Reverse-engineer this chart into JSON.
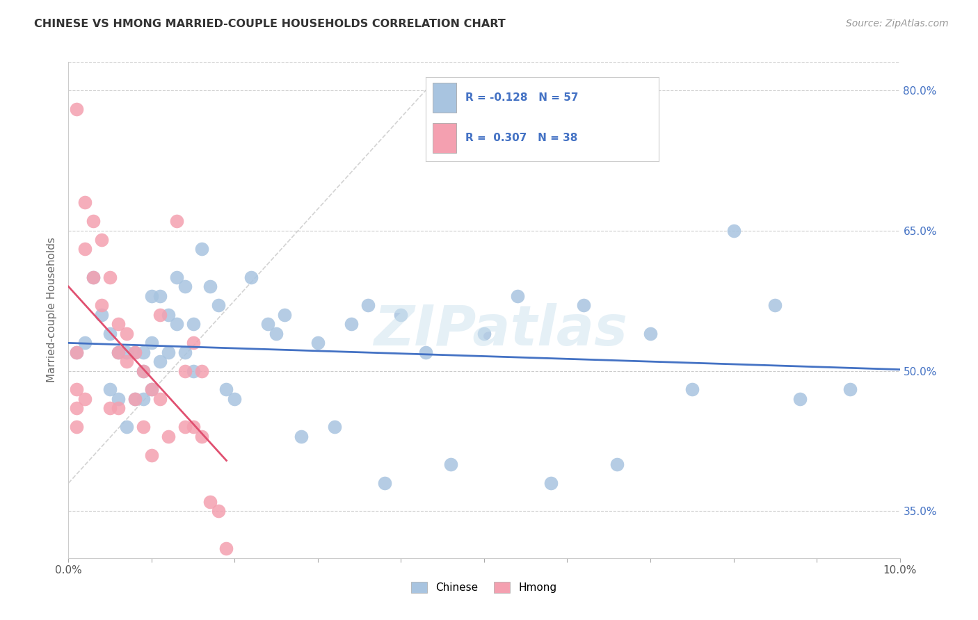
{
  "title": "CHINESE VS HMONG MARRIED-COUPLE HOUSEHOLDS CORRELATION CHART",
  "source": "Source: ZipAtlas.com",
  "ylabel": "Married-couple Households",
  "watermark": "ZIPatlas",
  "xlim": [
    0.0,
    0.1
  ],
  "ylim": [
    0.3,
    0.83
  ],
  "xticks": [
    0.0,
    0.01,
    0.02,
    0.03,
    0.04,
    0.05,
    0.06,
    0.07,
    0.08,
    0.09,
    0.1
  ],
  "yticks": [
    0.35,
    0.5,
    0.65,
    0.8
  ],
  "ytick_labels": [
    "35.0%",
    "50.0%",
    "65.0%",
    "80.0%"
  ],
  "chinese_color": "#a8c4e0",
  "hmong_color": "#f4a0b0",
  "chinese_line_color": "#4472c4",
  "hmong_line_color": "#e05070",
  "diagonal_color": "#c8c8c8",
  "R_chinese": -0.128,
  "N_chinese": 57,
  "R_hmong": 0.307,
  "N_hmong": 38,
  "legend_text_color": "#4472c4",
  "chinese_x": [
    0.001,
    0.002,
    0.003,
    0.004,
    0.005,
    0.005,
    0.006,
    0.006,
    0.007,
    0.007,
    0.008,
    0.008,
    0.009,
    0.009,
    0.009,
    0.01,
    0.01,
    0.01,
    0.011,
    0.011,
    0.012,
    0.012,
    0.013,
    0.013,
    0.014,
    0.014,
    0.015,
    0.015,
    0.016,
    0.017,
    0.018,
    0.019,
    0.02,
    0.022,
    0.024,
    0.025,
    0.026,
    0.028,
    0.03,
    0.032,
    0.034,
    0.036,
    0.038,
    0.04,
    0.043,
    0.046,
    0.05,
    0.054,
    0.058,
    0.062,
    0.066,
    0.07,
    0.075,
    0.08,
    0.085,
    0.088,
    0.094
  ],
  "chinese_y": [
    0.52,
    0.53,
    0.6,
    0.56,
    0.54,
    0.48,
    0.52,
    0.47,
    0.52,
    0.44,
    0.47,
    0.52,
    0.52,
    0.5,
    0.47,
    0.58,
    0.53,
    0.48,
    0.58,
    0.51,
    0.56,
    0.52,
    0.6,
    0.55,
    0.59,
    0.52,
    0.55,
    0.5,
    0.63,
    0.59,
    0.57,
    0.48,
    0.47,
    0.6,
    0.55,
    0.54,
    0.56,
    0.43,
    0.53,
    0.44,
    0.55,
    0.57,
    0.38,
    0.56,
    0.52,
    0.4,
    0.54,
    0.58,
    0.38,
    0.57,
    0.4,
    0.54,
    0.48,
    0.65,
    0.57,
    0.47,
    0.48
  ],
  "hmong_x": [
    0.001,
    0.001,
    0.001,
    0.001,
    0.001,
    0.002,
    0.002,
    0.002,
    0.003,
    0.003,
    0.004,
    0.004,
    0.005,
    0.005,
    0.006,
    0.006,
    0.006,
    0.007,
    0.007,
    0.008,
    0.008,
    0.009,
    0.009,
    0.01,
    0.01,
    0.011,
    0.011,
    0.012,
    0.013,
    0.014,
    0.014,
    0.015,
    0.015,
    0.016,
    0.016,
    0.017,
    0.018,
    0.019
  ],
  "hmong_y": [
    0.78,
    0.52,
    0.48,
    0.46,
    0.44,
    0.68,
    0.63,
    0.47,
    0.66,
    0.6,
    0.64,
    0.57,
    0.6,
    0.46,
    0.55,
    0.52,
    0.46,
    0.54,
    0.51,
    0.52,
    0.47,
    0.5,
    0.44,
    0.48,
    0.41,
    0.56,
    0.47,
    0.43,
    0.66,
    0.5,
    0.44,
    0.53,
    0.44,
    0.5,
    0.43,
    0.36,
    0.35,
    0.31
  ]
}
